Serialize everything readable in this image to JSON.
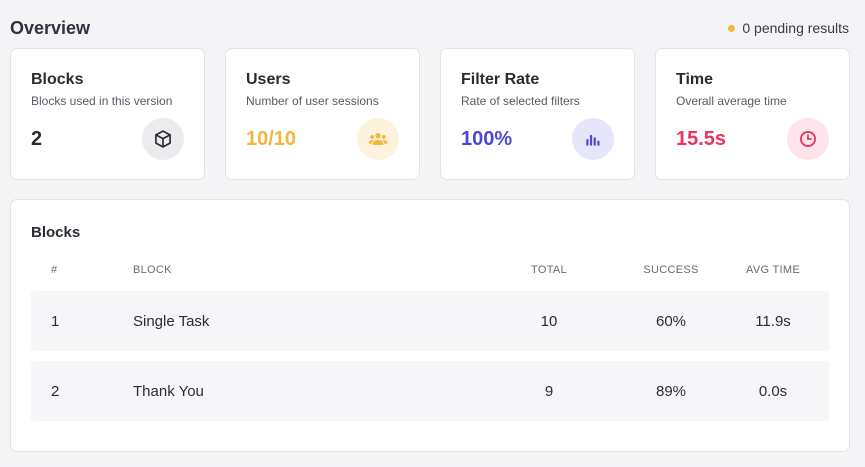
{
  "header": {
    "title": "Overview",
    "pending_text": "0 pending results",
    "pending_color": "#f4b63f"
  },
  "cards": [
    {
      "title": "Blocks",
      "subtitle": "Blocks used in this version",
      "value": "2",
      "icon": "cube-icon",
      "value_color": "#2b2b33",
      "icon_bg": "#ececee",
      "icon_color": "#2b2b33"
    },
    {
      "title": "Users",
      "subtitle": "Number of user sessions",
      "value": "10/10",
      "icon": "users-icon",
      "value_color": "#f4b63f",
      "icon_bg": "#fdf3dc",
      "icon_color": "#f4b63f"
    },
    {
      "title": "Filter Rate",
      "subtitle": "Rate of selected filters",
      "value": "100%",
      "icon": "bar-chart-icon",
      "value_color": "#4d47d8",
      "icon_bg": "#e6e6fa",
      "icon_color": "#4d47d8"
    },
    {
      "title": "Time",
      "subtitle": "Overall average time",
      "value": "15.5s",
      "icon": "clock-icon",
      "value_color": "#ec3461",
      "icon_bg": "#fde3ea",
      "icon_color": "#ec3461"
    }
  ],
  "blocks_table": {
    "title": "Blocks",
    "columns": {
      "num": "#",
      "block": "BLOCK",
      "total": "TOTAL",
      "success": "SUCCESS",
      "avg_time": "AVG TIME"
    },
    "rows": [
      {
        "num": "1",
        "block": "Single Task",
        "total": "10",
        "success": "60%",
        "avg_time": "11.9s"
      },
      {
        "num": "2",
        "block": "Thank You",
        "total": "9",
        "success": "89%",
        "avg_time": "0.0s"
      }
    ]
  }
}
